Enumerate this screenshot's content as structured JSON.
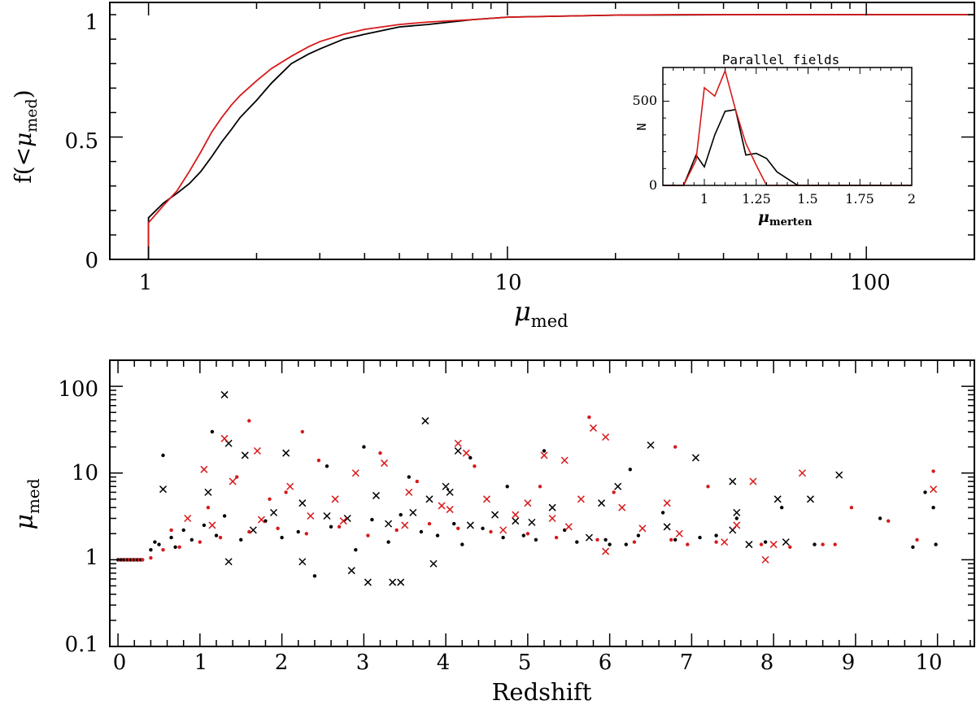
{
  "colors": {
    "black": "#000000",
    "red": "#d8191a"
  },
  "chart_data": [
    {
      "id": "cumulative",
      "type": "line",
      "xscale": "log",
      "xlim": [
        0.78,
        200
      ],
      "ylim": [
        0,
        1.05
      ],
      "xlabel": {
        "main": "μ",
        "sub": "med"
      },
      "ylabel": {
        "pre": "f(<",
        "main": "μ",
        "sub": "med",
        "post": ")"
      },
      "xticks": [
        1,
        10,
        100
      ],
      "xtick_labels": [
        "1",
        "10",
        "100"
      ],
      "yticks": [
        0,
        0.5,
        1
      ],
      "ytick_labels": [
        "0",
        "0.5",
        "1"
      ],
      "series": [
        {
          "name": "black",
          "color": "#000000",
          "x": [
            0.78,
            0.99,
            1.0,
            1.0,
            1.1,
            1.2,
            1.3,
            1.4,
            1.5,
            1.6,
            1.7,
            1.8,
            2.0,
            2.2,
            2.5,
            2.8,
            3.0,
            3.5,
            4.0,
            5.0,
            6.0,
            8.0,
            10,
            15,
            20,
            30,
            50,
            100,
            200
          ],
          "y": [
            0.0,
            0.0,
            0.0,
            0.17,
            0.23,
            0.27,
            0.31,
            0.36,
            0.42,
            0.48,
            0.53,
            0.58,
            0.65,
            0.72,
            0.8,
            0.84,
            0.86,
            0.9,
            0.92,
            0.95,
            0.96,
            0.98,
            0.99,
            0.995,
            0.998,
            0.999,
            1.0,
            1.0,
            1.0
          ]
        },
        {
          "name": "red",
          "color": "#d8191a",
          "x": [
            0.78,
            0.99,
            1.0,
            1.0,
            1.1,
            1.2,
            1.3,
            1.4,
            1.5,
            1.6,
            1.7,
            1.8,
            2.0,
            2.2,
            2.5,
            2.8,
            3.0,
            3.5,
            4.0,
            5.0,
            6.0,
            8.0,
            10,
            15,
            20,
            30,
            50,
            100,
            200
          ],
          "y": [
            0.0,
            0.0,
            0.0,
            0.15,
            0.22,
            0.28,
            0.36,
            0.44,
            0.52,
            0.58,
            0.63,
            0.67,
            0.73,
            0.78,
            0.83,
            0.87,
            0.89,
            0.92,
            0.94,
            0.96,
            0.97,
            0.98,
            0.99,
            0.995,
            0.998,
            1.0,
            1.0,
            1.0,
            1.0
          ]
        }
      ]
    },
    {
      "id": "inset",
      "type": "line",
      "title": "Parallel fields",
      "xlim": [
        0.8,
        2.0
      ],
      "ylim": [
        0,
        700
      ],
      "xlabel": {
        "main": "μ",
        "sub": "merten"
      },
      "ylabel": "N",
      "xticks": [
        1,
        1.25,
        1.5,
        1.75,
        2
      ],
      "xtick_labels": [
        "1",
        "1.25",
        "1.5",
        "1.75",
        "2"
      ],
      "yticks": [
        0,
        500
      ],
      "ytick_labels": [
        "0",
        "500"
      ],
      "series": [
        {
          "name": "black",
          "color": "#000000",
          "x": [
            0.8,
            0.9,
            0.96,
            1.0,
            1.05,
            1.1,
            1.15,
            1.2,
            1.25,
            1.3,
            1.35,
            1.4,
            1.45,
            1.5,
            2.0
          ],
          "y": [
            0,
            0,
            180,
            110,
            300,
            440,
            450,
            180,
            190,
            160,
            80,
            40,
            0,
            0,
            0
          ]
        },
        {
          "name": "red",
          "color": "#d8191a",
          "x": [
            0.8,
            0.9,
            0.96,
            1.0,
            1.05,
            1.1,
            1.15,
            1.2,
            1.25,
            1.3,
            1.35,
            2.0
          ],
          "y": [
            0,
            0,
            150,
            580,
            530,
            680,
            450,
            250,
            120,
            0,
            0,
            0
          ]
        }
      ]
    },
    {
      "id": "scatter",
      "type": "scatter",
      "yscale": "log",
      "xlim": [
        -0.1,
        10.45
      ],
      "ylim": [
        0.1,
        200
      ],
      "xlabel": "Redshift",
      "ylabel": {
        "main": "μ",
        "sub": "med"
      },
      "xticks": [
        0,
        1,
        2,
        3,
        4,
        5,
        6,
        7,
        8,
        9,
        10
      ],
      "xtick_labels": [
        "0",
        "1",
        "2",
        "3",
        "4",
        "5",
        "6",
        "7",
        "8",
        "9",
        "10"
      ],
      "yticks": [
        0.1,
        1,
        10,
        100
      ],
      "ytick_labels": [
        "0.1",
        "1",
        "10",
        "100"
      ],
      "series": [
        {
          "name": "black-x",
          "color": "#000000",
          "marker": "x",
          "points": [
            [
              1.3,
              80
            ],
            [
              3.75,
              40
            ],
            [
              6.5,
              21
            ],
            [
              7.05,
              15
            ],
            [
              8.8,
              9.5
            ],
            [
              1.35,
              22
            ],
            [
              1.55,
              16
            ],
            [
              2.05,
              17
            ],
            [
              4.15,
              18
            ],
            [
              3.35,
              0.55
            ],
            [
              3.45,
              0.55
            ],
            [
              2.85,
              0.75
            ],
            [
              1.35,
              0.95
            ],
            [
              3.05,
              0.55
            ],
            [
              3.85,
              0.9
            ],
            [
              2.25,
              0.95
            ],
            [
              7.5,
              8
            ],
            [
              7.55,
              3.5
            ],
            [
              8.05,
              5
            ],
            [
              8.45,
              5
            ],
            [
              6.1,
              7
            ],
            [
              5.3,
              4
            ],
            [
              5.9,
              4.5
            ],
            [
              4.3,
              2.5
            ],
            [
              4.0,
              7
            ],
            [
              4.05,
              6
            ],
            [
              3.8,
              5
            ],
            [
              3.6,
              3.5
            ],
            [
              1.65,
              2.2
            ],
            [
              1.9,
              3.5
            ],
            [
              2.25,
              4.5
            ],
            [
              2.8,
              3
            ],
            [
              3.15,
              5.5
            ],
            [
              1.1,
              6
            ],
            [
              0.55,
              6.5
            ],
            [
              7.5,
              2.2
            ],
            [
              8.15,
              1.6
            ],
            [
              7.7,
              1.5
            ],
            [
              4.85,
              2.8
            ],
            [
              6.7,
              2.4
            ],
            [
              5.75,
              1.8
            ],
            [
              2.55,
              3.2
            ],
            [
              3.3,
              2.6
            ],
            [
              4.6,
              3.3
            ],
            [
              5.05,
              2.7
            ]
          ]
        },
        {
          "name": "black-dot",
          "color": "#000000",
          "marker": "dot",
          "points": [
            [
              0.55,
              16
            ],
            [
              1.15,
              30
            ],
            [
              3.55,
              9
            ],
            [
              4.75,
              7
            ],
            [
              6.25,
              11
            ],
            [
              6.65,
              3.5
            ],
            [
              7.55,
              3
            ],
            [
              8.1,
              4
            ],
            [
              9.3,
              3
            ],
            [
              9.7,
              1.4
            ],
            [
              9.85,
              6
            ],
            [
              9.95,
              4
            ],
            [
              9.98,
              1.5
            ],
            [
              5.2,
              18
            ],
            [
              2.55,
              12
            ],
            [
              3.0,
              20
            ],
            [
              4.3,
              15
            ],
            [
              6.0,
              1.5
            ],
            [
              7.1,
              1.8
            ],
            [
              0.4,
              1.3
            ],
            [
              0.5,
              1.5
            ],
            [
              0.65,
              1.8
            ],
            [
              0.8,
              2.2
            ],
            [
              1.05,
              2.5
            ],
            [
              1.3,
              3.2
            ],
            [
              1.8,
              2.8
            ],
            [
              2.2,
              2.1
            ],
            [
              2.6,
              2.4
            ],
            [
              3.1,
              2.9
            ],
            [
              3.45,
              3.3
            ],
            [
              3.7,
              2.1
            ],
            [
              4.1,
              2.6
            ],
            [
              4.45,
              2.3
            ],
            [
              4.95,
              1.9
            ],
            [
              5.45,
              2.2
            ],
            [
              5.95,
              1.7
            ],
            [
              6.35,
              1.9
            ],
            [
              0.45,
              1.6
            ],
            [
              0.7,
              1.4
            ],
            [
              0.9,
              1.7
            ],
            [
              1.2,
              1.9
            ],
            [
              1.5,
              1.7
            ],
            [
              2.0,
              1.8
            ],
            [
              2.4,
              0.65
            ],
            [
              2.9,
              1.3
            ],
            [
              3.3,
              1.6
            ],
            [
              3.9,
              1.9
            ],
            [
              4.2,
              1.5
            ],
            [
              4.7,
              1.8
            ],
            [
              5.1,
              1.7
            ],
            [
              5.6,
              1.6
            ],
            [
              6.2,
              1.5
            ],
            [
              6.8,
              1.7
            ],
            [
              7.3,
              1.9
            ],
            [
              7.9,
              1.6
            ],
            [
              8.5,
              1.5
            ]
          ]
        },
        {
          "name": "red-x",
          "color": "#d8191a",
          "marker": "x",
          "points": [
            [
              1.3,
              25
            ],
            [
              1.7,
              18
            ],
            [
              4.15,
              22
            ],
            [
              5.8,
              33
            ],
            [
              5.95,
              26
            ],
            [
              8.35,
              10
            ],
            [
              7.75,
              8
            ],
            [
              9.95,
              6.5
            ],
            [
              5.2,
              16
            ],
            [
              5.45,
              14
            ],
            [
              4.25,
              17
            ],
            [
              3.25,
              13
            ],
            [
              2.9,
              10
            ],
            [
              1.05,
              11
            ],
            [
              1.4,
              8
            ],
            [
              2.1,
              7
            ],
            [
              2.65,
              5
            ],
            [
              3.55,
              6
            ],
            [
              4.5,
              5
            ],
            [
              5.0,
              4.5
            ],
            [
              5.65,
              5
            ],
            [
              6.15,
              4
            ],
            [
              6.7,
              4.5
            ],
            [
              7.55,
              2.5
            ],
            [
              7.4,
              1.6
            ],
            [
              8.0,
              1.5
            ],
            [
              7.9,
              1.0
            ],
            [
              5.95,
              1.25
            ],
            [
              6.85,
              2.0
            ],
            [
              4.85,
              3.3
            ],
            [
              4.05,
              3.8
            ],
            [
              3.5,
              2.5
            ],
            [
              2.75,
              2.8
            ],
            [
              2.35,
              3.2
            ],
            [
              1.75,
              2.9
            ],
            [
              1.15,
              2.5
            ],
            [
              0.85,
              3.0
            ],
            [
              5.5,
              2.4
            ],
            [
              6.4,
              2.3
            ],
            [
              3.95,
              4.2
            ],
            [
              4.7,
              2.2
            ],
            [
              5.3,
              3.0
            ]
          ]
        },
        {
          "name": "red-dot",
          "color": "#d8191a",
          "marker": "dot",
          "points": [
            [
              1.6,
              40
            ],
            [
              2.25,
              30
            ],
            [
              5.75,
              44
            ],
            [
              6.8,
              20
            ],
            [
              7.2,
              7
            ],
            [
              8.95,
              4
            ],
            [
              9.95,
              10.5
            ],
            [
              9.75,
              1.7
            ],
            [
              9.4,
              2.8
            ],
            [
              8.75,
              1.5
            ],
            [
              8.2,
              1.4
            ],
            [
              6.95,
              1.5
            ],
            [
              0.4,
              1.05
            ],
            [
              0.55,
              1.3
            ],
            [
              0.75,
              1.4
            ],
            [
              1.0,
              1.6
            ],
            [
              1.25,
              1.8
            ],
            [
              1.6,
              2.1
            ],
            [
              1.95,
              2.3
            ],
            [
              2.3,
              2.0
            ],
            [
              2.7,
              2.4
            ],
            [
              3.05,
              1.9
            ],
            [
              3.4,
              2.2
            ],
            [
              3.8,
              2.6
            ],
            [
              4.15,
              2.3
            ],
            [
              4.55,
              2.1
            ],
            [
              5.0,
              2.0
            ],
            [
              5.35,
              1.8
            ],
            [
              5.85,
              1.7
            ],
            [
              6.3,
              1.6
            ],
            [
              6.75,
              1.7
            ],
            [
              7.3,
              1.6
            ],
            [
              7.85,
              1.5
            ],
            [
              8.6,
              1.5
            ],
            [
              1.45,
              9
            ],
            [
              2.05,
              6
            ],
            [
              3.65,
              8
            ],
            [
              4.35,
              12
            ],
            [
              5.15,
              7
            ],
            [
              6.05,
              6
            ],
            [
              2.45,
              14
            ],
            [
              3.2,
              17
            ],
            [
              1.85,
              5
            ],
            [
              1.1,
              4
            ],
            [
              0.65,
              2.2
            ]
          ]
        }
      ]
    }
  ]
}
